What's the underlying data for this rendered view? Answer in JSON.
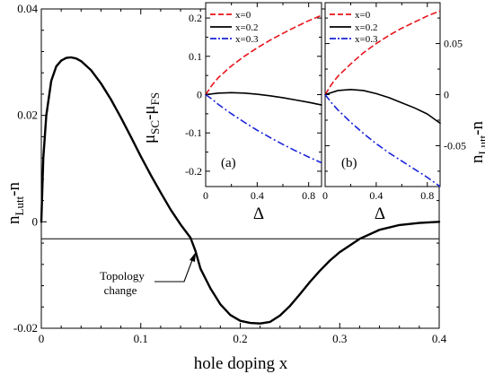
{
  "chart_data": [
    {
      "type": "line",
      "id": "main",
      "xlabel": "hole doping x",
      "ylabel_main": "n",
      "ylabel_sub": "Lutt",
      "ylabel_tail": "-n",
      "xlim": [
        0,
        0.4
      ],
      "ylim": [
        -0.02,
        0.04
      ],
      "x_ticks": [
        0,
        0.1,
        0.2,
        0.3,
        0.4
      ],
      "x_tick_labels": [
        "0",
        "0.1",
        "0.2",
        "0.3",
        "0.4"
      ],
      "y_ticks": [
        -0.02,
        0,
        0.02,
        0.04
      ],
      "y_tick_labels": [
        "-0.02",
        "0",
        "0.02",
        "0.04"
      ],
      "zero_line": true,
      "annotation": {
        "lines": [
          "Topology",
          "change"
        ],
        "points_to": [
          0.155,
          -0.006
        ]
      },
      "series": [
        {
          "color": "#000000",
          "style": "solid",
          "x": [
            0,
            0.002,
            0.005,
            0.01,
            0.015,
            0.02,
            0.025,
            0.03,
            0.035,
            0.04,
            0.05,
            0.06,
            0.07,
            0.08,
            0.09,
            0.1,
            0.11,
            0.12,
            0.13,
            0.14,
            0.15,
            0.155,
            0.16,
            0.17,
            0.18,
            0.19,
            0.2,
            0.21,
            0.22,
            0.23,
            0.24,
            0.25,
            0.26,
            0.27,
            0.28,
            0.29,
            0.3,
            0.32,
            0.34,
            0.36,
            0.38,
            0.4
          ],
          "y": [
            0,
            0.012,
            0.02,
            0.0265,
            0.0292,
            0.0303,
            0.0308,
            0.0309,
            0.0307,
            0.0302,
            0.0285,
            0.026,
            0.023,
            0.0196,
            0.016,
            0.0123,
            0.0088,
            0.0055,
            0.0023,
            -0.0005,
            -0.003,
            -0.0055,
            -0.0088,
            -0.0125,
            -0.0155,
            -0.0175,
            -0.0186,
            -0.019,
            -0.0191,
            -0.0188,
            -0.0176,
            -0.0158,
            -0.0136,
            -0.0113,
            -0.0092,
            -0.0073,
            -0.0057,
            -0.0032,
            -0.0015,
            -0.0006,
            -0.0002,
            0
          ]
        }
      ]
    },
    {
      "type": "line",
      "id": "inset-a",
      "panel_label": "(a)",
      "xlabel": "Δ",
      "ylabel_main": "μ",
      "ylabel_sub1": "SC",
      "ylabel_mid": "-μ",
      "ylabel_sub2": "FS",
      "xlim": [
        0,
        0.9
      ],
      "ylim": [
        -0.24,
        0.24
      ],
      "x_ticks": [
        0,
        0.4,
        0.8
      ],
      "x_tick_labels": [
        "0",
        "0.4",
        "0.8"
      ],
      "y_ticks": [
        -0.2,
        -0.1,
        0,
        0.1,
        0.2
      ],
      "y_tick_labels": [
        "-0.2",
        "-0.1",
        "0",
        "0.1",
        "0.2"
      ],
      "legend": [
        "x=0",
        "x=0.2",
        "x=0.3"
      ],
      "series": [
        {
          "name": "x=0",
          "color": "#e8141c",
          "style": "dashed",
          "x": [
            0,
            0.05,
            0.1,
            0.2,
            0.3,
            0.4,
            0.5,
            0.6,
            0.7,
            0.8,
            0.9
          ],
          "y": [
            0,
            0.025,
            0.045,
            0.075,
            0.1,
            0.122,
            0.142,
            0.16,
            0.177,
            0.193,
            0.207
          ]
        },
        {
          "name": "x=0.2",
          "color": "#000000",
          "style": "solid",
          "x": [
            0,
            0.1,
            0.2,
            0.3,
            0.4,
            0.5,
            0.6,
            0.7,
            0.8,
            0.9
          ],
          "y": [
            0,
            0.004,
            0.005,
            0.004,
            0.001,
            -0.003,
            -0.008,
            -0.014,
            -0.02,
            -0.027
          ]
        },
        {
          "name": "x=0.3",
          "color": "#1a24d6",
          "style": "dashdot",
          "x": [
            0,
            0.05,
            0.1,
            0.2,
            0.3,
            0.4,
            0.5,
            0.6,
            0.7,
            0.8,
            0.9
          ],
          "y": [
            0,
            -0.012,
            -0.026,
            -0.05,
            -0.072,
            -0.093,
            -0.112,
            -0.13,
            -0.147,
            -0.163,
            -0.178
          ]
        }
      ]
    },
    {
      "type": "line",
      "id": "inset-b",
      "panel_label": "(b)",
      "xlabel": "Δ",
      "ylabel_right_main": "n",
      "ylabel_right_sub": "Lutt",
      "ylabel_right_tail": "-n",
      "xlim": [
        0,
        0.9
      ],
      "ylim": [
        -0.09,
        0.09
      ],
      "x_ticks": [
        0,
        0.4,
        0.8
      ],
      "x_tick_labels": [
        "0",
        "0.4",
        "0.8"
      ],
      "y_ticks": [
        -0.05,
        0,
        0.05
      ],
      "y_tick_labels": [
        "-0.05",
        "0",
        "0.05"
      ],
      "legend": [
        "x=0",
        "x=0.2",
        "x=0.3"
      ],
      "series": [
        {
          "name": "x=0",
          "color": "#e8141c",
          "style": "dashed",
          "x": [
            0,
            0.05,
            0.1,
            0.2,
            0.3,
            0.4,
            0.5,
            0.6,
            0.7,
            0.8,
            0.9
          ],
          "y": [
            0,
            0.01,
            0.018,
            0.03,
            0.041,
            0.05,
            0.058,
            0.065,
            0.071,
            0.077,
            0.082
          ]
        },
        {
          "name": "x=0.2",
          "color": "#000000",
          "style": "solid",
          "x": [
            0,
            0.1,
            0.2,
            0.3,
            0.4,
            0.5,
            0.6,
            0.7,
            0.8,
            0.9
          ],
          "y": [
            0,
            0.004,
            0.005,
            0.004,
            0.001,
            -0.003,
            -0.008,
            -0.013,
            -0.019,
            -0.028
          ]
        },
        {
          "name": "x=0.3",
          "color": "#1a24d6",
          "style": "dashdot",
          "x": [
            0,
            0.05,
            0.1,
            0.2,
            0.3,
            0.4,
            0.5,
            0.6,
            0.7,
            0.8,
            0.9
          ],
          "y": [
            0,
            -0.008,
            -0.015,
            -0.027,
            -0.038,
            -0.048,
            -0.057,
            -0.065,
            -0.073,
            -0.081,
            -0.09
          ]
        }
      ]
    }
  ]
}
